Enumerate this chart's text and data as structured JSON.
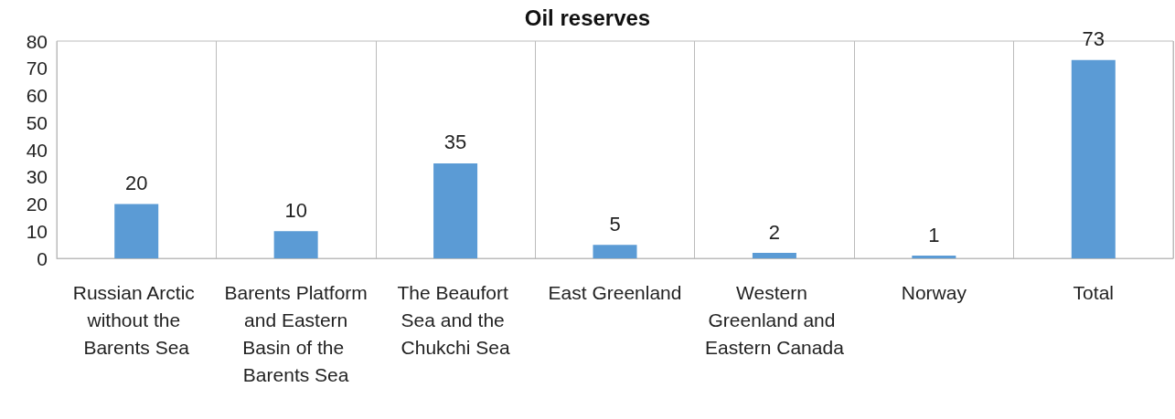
{
  "chart_data": {
    "type": "bar",
    "title": "Oil reserves",
    "categories": [
      "Russian Arctic without the Barents Sea",
      "Barents Platform and Eastern Basin of the Barents Sea",
      "The Beaufort Sea and the Chukchi Sea",
      "East Greenland",
      "Western Greenland and Eastern Canada",
      "Norway",
      "Total"
    ],
    "values": [
      20,
      10,
      35,
      5,
      2,
      1,
      73
    ],
    "color": "#5b9bd5",
    "ylim": [
      0,
      80
    ],
    "yticks": [
      0,
      10,
      20,
      30,
      40,
      50,
      60,
      70,
      80
    ],
    "grid": "x",
    "data_labels": true
  }
}
